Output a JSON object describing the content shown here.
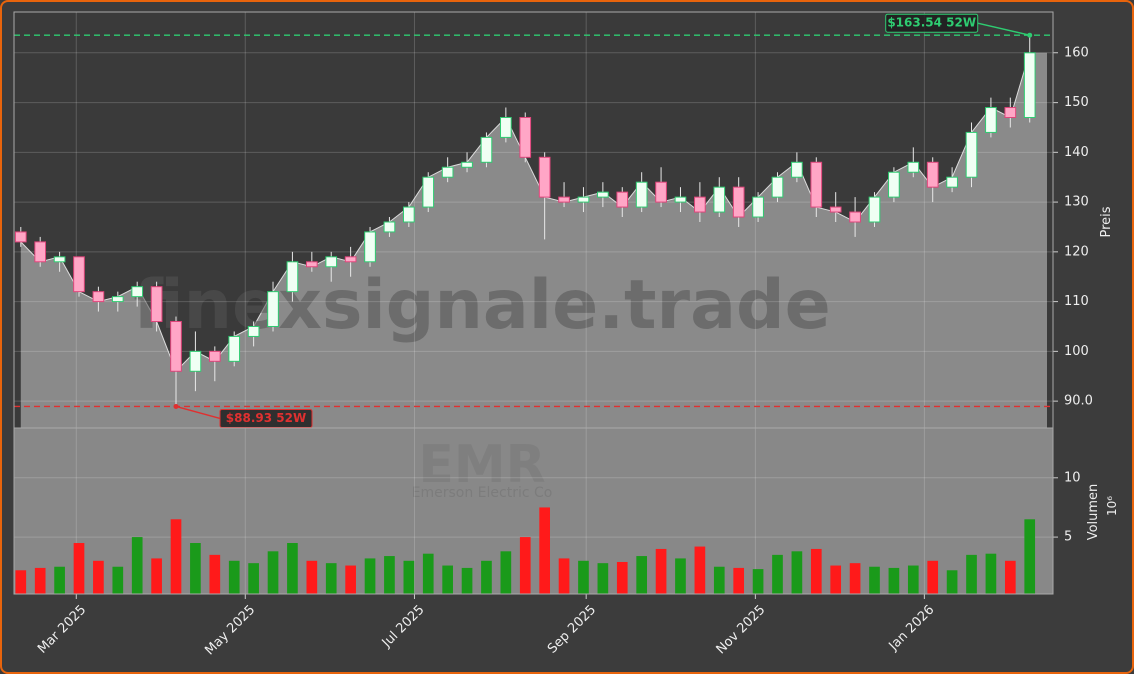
{
  "chart_data": {
    "type": "candlestick",
    "watermark": "finexsignale.trade",
    "ticker": "EMR",
    "company": "Emerson Electric Co",
    "ylabel": "Preis",
    "volume_label": "Volumen",
    "volume_unit": "10⁶",
    "up_color": "#2ecc71",
    "down_color": "#e0457b",
    "volume_up_color": "#1a9a1a",
    "volume_down_color": "#ff1a1a",
    "grid": true,
    "xlim": [
      -0.35,
      53.2
    ],
    "xticks": [
      {
        "value": 2.86,
        "label": "Mar 2025"
      },
      {
        "value": 11.57,
        "label": "May 2025"
      },
      {
        "value": 20.29,
        "label": "Jul 2025"
      },
      {
        "value": 29.14,
        "label": "Sep 2025"
      },
      {
        "value": 37.86,
        "label": "Nov 2025"
      },
      {
        "value": 46.57,
        "label": "Jan 2026"
      }
    ],
    "ylim": [
      84.6,
      168.2
    ],
    "yticks": [
      {
        "value": 90,
        "label": "90.0"
      },
      100,
      110,
      120,
      130,
      140,
      150,
      160
    ],
    "volume_ylim": [
      0.2,
      14.2
    ],
    "volume_yticks": [
      5,
      10
    ],
    "high_52w": {
      "value": 163.54,
      "label": "$163.54 52W",
      "color": "#2ecc71",
      "index": 52
    },
    "low_52w": {
      "value": 88.93,
      "label": "$88.93 52W",
      "color": "#e03030",
      "index": 8
    },
    "open": [
      124,
      122,
      118,
      119,
      112,
      110,
      111,
      113,
      106,
      96,
      100,
      98,
      103,
      105,
      112,
      118,
      117,
      119,
      118,
      124,
      126,
      129,
      135,
      137,
      138,
      143,
      147,
      139,
      131,
      130,
      131,
      132,
      129,
      134,
      130,
      131,
      128,
      133,
      127,
      131,
      135,
      138,
      129,
      128,
      126,
      131,
      136,
      138,
      133,
      135,
      144,
      149,
      147
    ],
    "high": [
      125,
      123,
      120,
      119,
      113,
      112,
      114,
      114,
      107,
      104,
      101,
      104,
      106,
      114,
      120,
      120,
      120,
      121,
      125,
      127,
      130,
      136,
      139,
      140,
      144,
      149,
      148,
      140,
      134,
      133,
      134,
      133,
      136,
      137,
      133,
      134,
      135,
      135,
      132,
      136,
      140,
      139,
      132,
      131,
      132,
      137,
      141,
      139,
      137,
      146,
      151,
      151,
      163.54
    ],
    "low": [
      121,
      117,
      116,
      111,
      108,
      108,
      109,
      104,
      88.93,
      92,
      94,
      97,
      101,
      104,
      110,
      116,
      114,
      115,
      117,
      123,
      125,
      128,
      134,
      136,
      137,
      142,
      138,
      122.5,
      129,
      128,
      129,
      127,
      128,
      129,
      128,
      126,
      127,
      125,
      126,
      130,
      134,
      127,
      126,
      123,
      125,
      130,
      135,
      130,
      132,
      133,
      143,
      145,
      146
    ],
    "close": [
      122,
      118,
      119,
      112,
      110,
      111,
      113,
      106,
      96,
      100,
      98,
      103,
      105,
      112,
      118,
      117,
      119,
      118,
      124,
      126,
      129,
      135,
      137,
      138,
      143,
      147,
      139,
      131,
      130,
      131,
      132,
      129,
      134,
      130,
      131,
      128,
      133,
      127,
      131,
      135,
      138,
      129,
      128,
      126,
      131,
      136,
      138,
      133,
      135,
      144,
      149,
      147,
      160
    ],
    "volume": [
      2.2,
      2.4,
      2.5,
      4.5,
      3.0,
      2.5,
      5.0,
      3.2,
      6.5,
      4.5,
      3.5,
      3.0,
      2.8,
      3.8,
      4.5,
      3.0,
      2.8,
      2.6,
      3.2,
      3.4,
      3.0,
      3.6,
      2.6,
      2.4,
      3.0,
      3.8,
      5.0,
      7.5,
      3.2,
      3.0,
      2.8,
      2.9,
      3.4,
      4.0,
      3.2,
      4.2,
      2.5,
      2.4,
      2.3,
      3.5,
      3.8,
      4.0,
      2.6,
      2.8,
      2.5,
      2.4,
      2.6,
      3.0,
      2.2,
      3.5,
      3.6,
      3.0,
      6.5
    ]
  }
}
